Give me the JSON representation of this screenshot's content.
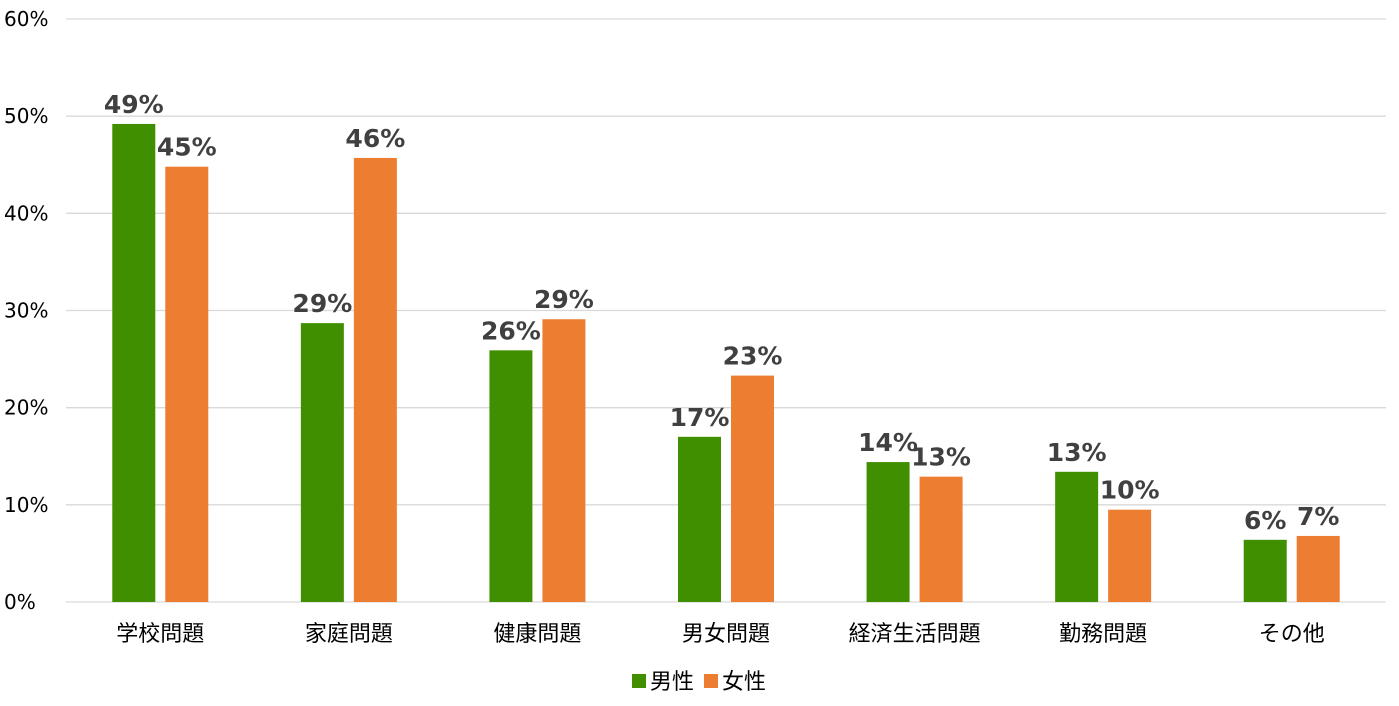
{
  "chart_data": {
    "type": "bar",
    "title": "",
    "xlabel": "",
    "ylabel": "",
    "categories": [
      "学校問題",
      "家庭問題",
      "健康問題",
      "男女問題",
      "経済生活問題",
      "勤務問題",
      "その他"
    ],
    "series": [
      {
        "name": "男性",
        "color": "#3f8f00",
        "values": [
          49.2,
          28.7,
          25.9,
          17.0,
          14.4,
          13.4,
          6.4
        ],
        "labels": [
          "49%",
          "29%",
          "26%",
          "17%",
          "14%",
          "13%",
          "6%"
        ]
      },
      {
        "name": "女性",
        "color": "#ed7d31",
        "values": [
          44.8,
          45.7,
          29.1,
          23.3,
          12.9,
          9.5,
          6.8
        ],
        "labels": [
          "45%",
          "46%",
          "29%",
          "23%",
          "13%",
          "10%",
          "7%"
        ]
      }
    ],
    "ylim": [
      0,
      60
    ],
    "yticks": [
      0,
      10,
      20,
      30,
      40,
      50,
      60
    ],
    "ytick_labels": [
      "0%",
      "10%",
      "20%",
      "30%",
      "40%",
      "50%",
      "60%"
    ],
    "grid": true,
    "legend_position": "bottom"
  }
}
